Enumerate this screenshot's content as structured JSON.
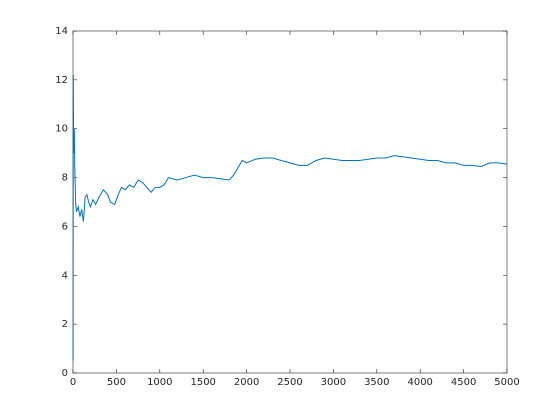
{
  "chart_data": {
    "type": "line",
    "color": "#0072bd",
    "x": [
      1,
      3,
      8,
      15,
      20,
      30,
      40,
      60,
      80,
      100,
      120,
      140,
      160,
      180,
      200,
      230,
      260,
      300,
      350,
      400,
      430,
      480,
      520,
      560,
      600,
      650,
      700,
      750,
      800,
      850,
      900,
      950,
      1000,
      1050,
      1100,
      1200,
      1300,
      1400,
      1500,
      1600,
      1700,
      1800,
      1850,
      1900,
      1950,
      2000,
      2100,
      2200,
      2300,
      2400,
      2500,
      2600,
      2700,
      2800,
      2900,
      3000,
      3100,
      3200,
      3300,
      3400,
      3500,
      3600,
      3700,
      3800,
      3900,
      4000,
      4100,
      4200,
      4300,
      4400,
      4500,
      4600,
      4700,
      4800,
      4900,
      5000
    ],
    "values": [
      0.5,
      12.2,
      9.0,
      10.0,
      8.5,
      7.0,
      6.6,
      6.8,
      6.4,
      6.7,
      6.2,
      7.2,
      7.3,
      7.0,
      6.8,
      7.1,
      6.9,
      7.2,
      7.5,
      7.3,
      7.0,
      6.9,
      7.3,
      7.6,
      7.5,
      7.7,
      7.6,
      7.9,
      7.8,
      7.6,
      7.4,
      7.6,
      7.6,
      7.7,
      8.0,
      7.9,
      8.0,
      8.1,
      8.0,
      8.0,
      7.95,
      7.9,
      8.1,
      8.4,
      8.7,
      8.6,
      8.75,
      8.8,
      8.8,
      8.7,
      8.6,
      8.5,
      8.5,
      8.7,
      8.8,
      8.75,
      8.7,
      8.7,
      8.7,
      8.75,
      8.8,
      8.8,
      8.9,
      8.85,
      8.8,
      8.75,
      8.7,
      8.7,
      8.6,
      8.6,
      8.5,
      8.5,
      8.45,
      8.6,
      8.6,
      8.55
    ],
    "xlim": [
      0,
      5000
    ],
    "xticks": [
      0,
      500,
      1000,
      1500,
      2000,
      2500,
      3000,
      3500,
      4000,
      4500,
      5000
    ],
    "ylim": [
      0,
      14
    ],
    "yticks": [
      0,
      2,
      4,
      6,
      8,
      10,
      12,
      14
    ]
  }
}
